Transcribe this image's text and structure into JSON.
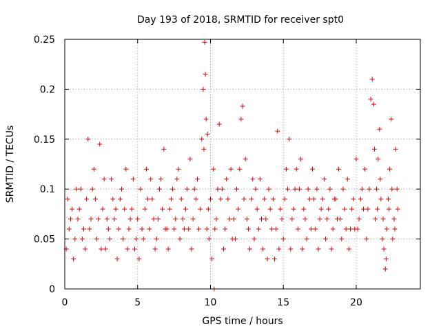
{
  "chart_data": {
    "type": "scatter",
    "title": "Day 193 of 2018, SRMTID for receiver spt0",
    "xlabel": "GPS time / hours",
    "ylabel": "SRMTID / TECUs",
    "xlim": [
      0,
      24.4
    ],
    "ylim": [
      0,
      0.25
    ],
    "xticks": [
      0,
      5,
      10,
      15,
      20
    ],
    "xtick_labels": [
      "0",
      "5",
      "10",
      "15",
      "20"
    ],
    "yticks": [
      0,
      0.05,
      0.1,
      0.15,
      0.2,
      0.25
    ],
    "ytick_labels": [
      "0",
      "0.05",
      "0.1",
      "0.15",
      "0.2",
      "0.25"
    ],
    "grid": true,
    "marker": "+",
    "color": "#e00000",
    "series": [
      {
        "name": "SRMTID",
        "points": [
          [
            0.1,
            0.04
          ],
          [
            0.3,
            0.06
          ],
          [
            0.5,
            0.08
          ],
          [
            0.7,
            0.05
          ],
          [
            0.9,
            0.07
          ],
          [
            1.1,
            0.1
          ],
          [
            1.3,
            0.06
          ],
          [
            1.5,
            0.09
          ],
          [
            1.6,
            0.15
          ],
          [
            1.8,
            0.07
          ],
          [
            2.0,
            0.12
          ],
          [
            2.2,
            0.05
          ],
          [
            2.4,
            0.145
          ],
          [
            2.6,
            0.08
          ],
          [
            2.8,
            0.04
          ],
          [
            3.0,
            0.06
          ],
          [
            3.2,
            0.11
          ],
          [
            3.4,
            0.07
          ],
          [
            3.6,
            0.03
          ],
          [
            3.8,
            0.09
          ],
          [
            4.0,
            0.05
          ],
          [
            4.2,
            0.12
          ],
          [
            4.4,
            0.06
          ],
          [
            4.6,
            0.08
          ],
          [
            4.8,
            0.04
          ],
          [
            5.0,
            0.07
          ],
          [
            5.2,
            0.1
          ],
          [
            5.4,
            0.05
          ],
          [
            5.6,
            0.12
          ],
          [
            5.8,
            0.06
          ],
          [
            6.0,
            0.09
          ],
          [
            6.2,
            0.04
          ],
          [
            6.4,
            0.07
          ],
          [
            6.6,
            0.11
          ],
          [
            6.8,
            0.14
          ],
          [
            7.0,
            0.06
          ],
          [
            7.2,
            0.08
          ],
          [
            7.4,
            0.1
          ],
          [
            7.6,
            0.07
          ],
          [
            7.8,
            0.12
          ],
          [
            8.0,
            0.09
          ],
          [
            8.2,
            0.06
          ],
          [
            8.4,
            0.1
          ],
          [
            8.6,
            0.13
          ],
          [
            8.8,
            0.07
          ],
          [
            9.0,
            0.09
          ],
          [
            9.2,
            0.06
          ],
          [
            9.4,
            0.15
          ],
          [
            9.5,
            0.2
          ],
          [
            9.6,
            0.247
          ],
          [
            9.65,
            0.215
          ],
          [
            9.7,
            0.17
          ],
          [
            9.8,
            0.155
          ],
          [
            9.9,
            0.05
          ],
          [
            10.0,
            0.09
          ],
          [
            10.2,
            0.12
          ],
          [
            10.4,
            0.07
          ],
          [
            10.6,
            0.165
          ],
          [
            10.8,
            0.1
          ],
          [
            11.0,
            0.06
          ],
          [
            11.2,
            0.09
          ],
          [
            11.4,
            0.12
          ],
          [
            11.6,
            0.07
          ],
          [
            11.8,
            0.1
          ],
          [
            12.0,
            0.12
          ],
          [
            12.1,
            0.17
          ],
          [
            12.2,
            0.183
          ],
          [
            12.4,
            0.13
          ],
          [
            12.6,
            0.06
          ],
          [
            12.8,
            0.09
          ],
          [
            13.0,
            0.05
          ],
          [
            13.2,
            0.08
          ],
          [
            13.4,
            0.11
          ],
          [
            13.6,
            0.04
          ],
          [
            13.8,
            0.07
          ],
          [
            14.0,
            0.1
          ],
          [
            14.2,
            0.06
          ],
          [
            14.4,
            0.03
          ],
          [
            14.6,
            0.158
          ],
          [
            14.8,
            0.08
          ],
          [
            15.0,
            0.05
          ],
          [
            15.2,
            0.12
          ],
          [
            15.4,
            0.15
          ],
          [
            15.6,
            0.07
          ],
          [
            15.8,
            0.1
          ],
          [
            16.0,
            0.06
          ],
          [
            16.2,
            0.13
          ],
          [
            16.4,
            0.08
          ],
          [
            16.6,
            0.05
          ],
          [
            16.8,
            0.09
          ],
          [
            17.0,
            0.12
          ],
          [
            17.2,
            0.06
          ],
          [
            17.4,
            0.04
          ],
          [
            17.6,
            0.08
          ],
          [
            17.8,
            0.11
          ],
          [
            18.0,
            0.07
          ],
          [
            18.2,
            0.1
          ],
          [
            18.4,
            0.06
          ],
          [
            18.6,
            0.09
          ],
          [
            18.8,
            0.12
          ],
          [
            19.0,
            0.05
          ],
          [
            19.2,
            0.08
          ],
          [
            19.4,
            0.11
          ],
          [
            19.6,
            0.06
          ],
          [
            19.8,
            0.09
          ],
          [
            20.0,
            0.13
          ],
          [
            20.2,
            0.07
          ],
          [
            20.4,
            0.1
          ],
          [
            20.6,
            0.12
          ],
          [
            20.8,
            0.08
          ],
          [
            21.0,
            0.19
          ],
          [
            21.1,
            0.21
          ],
          [
            21.2,
            0.185
          ],
          [
            21.4,
            0.1
          ],
          [
            21.6,
            0.16
          ],
          [
            21.8,
            0.05
          ],
          [
            22.0,
            0.02
          ],
          [
            22.2,
            0.09
          ],
          [
            22.4,
            0.17
          ],
          [
            22.6,
            0.07
          ],
          [
            22.8,
            0.1
          ],
          [
            0.2,
            0.09
          ],
          [
            0.6,
            0.03
          ],
          [
            1.0,
            0.08
          ],
          [
            1.4,
            0.04
          ],
          [
            1.9,
            0.1
          ],
          [
            2.3,
            0.07
          ],
          [
            2.7,
            0.11
          ],
          [
            3.1,
            0.05
          ],
          [
            3.5,
            0.08
          ],
          [
            3.9,
            0.1
          ],
          [
            4.3,
            0.04
          ],
          [
            4.7,
            0.11
          ],
          [
            5.1,
            0.03
          ],
          [
            5.5,
            0.08
          ],
          [
            5.9,
            0.11
          ],
          [
            6.3,
            0.05
          ],
          [
            6.7,
            0.08
          ],
          [
            7.1,
            0.04
          ],
          [
            7.5,
            0.06
          ],
          [
            7.9,
            0.05
          ],
          [
            8.3,
            0.08
          ],
          [
            8.7,
            0.04
          ],
          [
            9.1,
            0.11
          ],
          [
            9.3,
            0.08
          ],
          [
            9.75,
            0.06
          ],
          [
            10.1,
            0.03
          ],
          [
            10.5,
            0.1
          ],
          [
            10.9,
            0.04
          ],
          [
            11.3,
            0.07
          ],
          [
            11.7,
            0.05
          ],
          [
            12.3,
            0.09
          ],
          [
            12.7,
            0.04
          ],
          [
            13.1,
            0.1
          ],
          [
            13.5,
            0.07
          ],
          [
            13.9,
            0.03
          ],
          [
            14.3,
            0.09
          ],
          [
            14.7,
            0.04
          ],
          [
            15.1,
            0.09
          ],
          [
            15.5,
            0.04
          ],
          [
            15.9,
            0.12
          ],
          [
            16.3,
            0.04
          ],
          [
            16.7,
            0.1
          ],
          [
            17.1,
            0.09
          ],
          [
            17.5,
            0.07
          ],
          [
            17.9,
            0.05
          ],
          [
            18.3,
            0.04
          ],
          [
            18.7,
            0.07
          ],
          [
            19.1,
            0.1
          ],
          [
            19.5,
            0.04
          ],
          [
            19.9,
            0.06
          ],
          [
            20.3,
            0.09
          ],
          [
            20.7,
            0.05
          ],
          [
            21.3,
            0.07
          ],
          [
            21.5,
            0.13
          ],
          [
            21.7,
            0.09
          ],
          [
            21.9,
            0.04
          ],
          [
            22.1,
            0.06
          ],
          [
            22.3,
            0.12
          ],
          [
            22.5,
            0.05
          ],
          [
            22.7,
            0.14
          ],
          [
            0.4,
            0.07
          ],
          [
            0.8,
            0.1
          ],
          [
            1.2,
            0.05
          ],
          [
            1.7,
            0.06
          ],
          [
            2.1,
            0.09
          ],
          [
            2.5,
            0.04
          ],
          [
            2.9,
            0.07
          ],
          [
            3.3,
            0.09
          ],
          [
            3.7,
            0.06
          ],
          [
            4.1,
            0.08
          ],
          [
            4.5,
            0.07
          ],
          [
            4.9,
            0.05
          ],
          [
            5.3,
            0.06
          ],
          [
            5.7,
            0.09
          ],
          [
            6.1,
            0.07
          ],
          [
            6.5,
            0.1
          ],
          [
            6.9,
            0.06
          ],
          [
            7.3,
            0.09
          ],
          [
            7.7,
            0.11
          ],
          [
            8.1,
            0.07
          ],
          [
            8.5,
            0.06
          ],
          [
            8.9,
            0.1
          ],
          [
            9.55,
            0.14
          ],
          [
            9.85,
            0.08
          ],
          [
            10.3,
            0.06
          ],
          [
            10.7,
            0.09
          ],
          [
            11.1,
            0.11
          ],
          [
            11.5,
            0.05
          ],
          [
            11.9,
            0.08
          ],
          [
            12.5,
            0.07
          ],
          [
            12.9,
            0.11
          ],
          [
            13.3,
            0.06
          ],
          [
            13.7,
            0.09
          ],
          [
            14.1,
            0.08
          ],
          [
            14.5,
            0.06
          ],
          [
            14.9,
            0.07
          ],
          [
            15.3,
            0.1
          ],
          [
            15.7,
            0.08
          ],
          [
            16.1,
            0.1
          ],
          [
            16.5,
            0.07
          ],
          [
            16.9,
            0.06
          ],
          [
            17.3,
            0.1
          ],
          [
            17.7,
            0.09
          ],
          [
            18.1,
            0.08
          ],
          [
            18.5,
            0.09
          ],
          [
            18.9,
            0.07
          ],
          [
            19.3,
            0.06
          ],
          [
            19.7,
            0.08
          ],
          [
            20.1,
            0.06
          ],
          [
            20.5,
            0.08
          ],
          [
            20.9,
            0.1
          ],
          [
            21.25,
            0.14
          ],
          [
            21.45,
            0.08
          ],
          [
            21.65,
            0.11
          ],
          [
            21.85,
            0.07
          ],
          [
            22.05,
            0.03
          ],
          [
            22.25,
            0.08
          ],
          [
            22.45,
            0.1
          ],
          [
            22.65,
            0.06
          ],
          [
            22.85,
            0.08
          ],
          [
            10.25,
            0.0
          ]
        ]
      }
    ]
  }
}
